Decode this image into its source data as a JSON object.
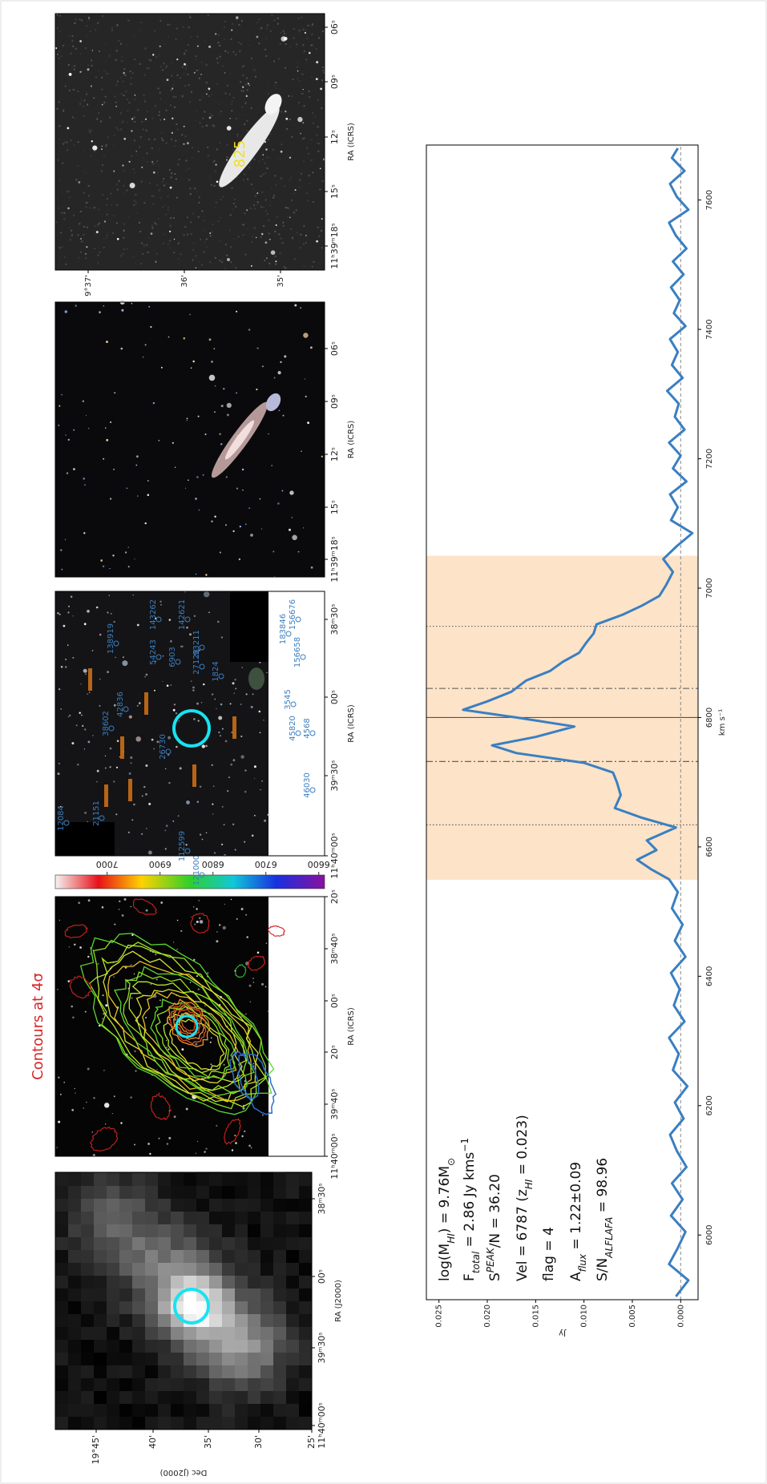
{
  "panels": [
    {
      "xlabel": "RA (J2000)",
      "ylabel": "Dec (J2000)",
      "xticks": [
        "11ʰ40ᵐ00ˢ",
        "39ᵐ30ˢ",
        "00ˢ",
        "38ᵐ30ˢ"
      ],
      "yticks": [
        "19°45'",
        "40'",
        "35'",
        "30'",
        "25'"
      ]
    },
    {
      "title": "Contours at 4σ",
      "xlabel": "RA (ICRS)",
      "xticks": [
        "11ʰ40ᵐ00ˢ",
        "39ᵐ40ˢ",
        "20ˢ",
        "00ˢ",
        "38ᵐ40ˢ",
        "20ˢ"
      ]
    },
    {
      "xlabel": "RA (ICRS)",
      "xticks": [
        "11ʰ40ᵐ00ˢ",
        "39ᵐ30ˢ",
        "00ˢ",
        "38ᵐ30ˢ"
      ],
      "colorbar_ticks": [
        7000,
        6900,
        6800,
        6700,
        6600
      ],
      "clim": [
        6589,
        7098
      ],
      "labels": [
        "138919",
        "143262",
        "142621",
        "54243",
        "93211",
        "183846",
        "156658",
        "156676",
        "38602",
        "42836",
        "26730",
        "6903",
        "27128",
        "1824",
        "45820",
        "3545",
        "4568",
        "46030",
        "12084",
        "21151",
        "112599",
        "121000"
      ]
    },
    {
      "xlabel": "RA (ICRS)",
      "xticks": [
        "11ʰ39ᵐ18ˢ",
        "15ˢ",
        "12ˢ",
        "09ˢ",
        "06ˢ"
      ]
    },
    {
      "xlabel": "RA (ICRS)",
      "xticks": [
        "11ʰ39ᵐ18ˢ",
        "15ˢ",
        "12ˢ",
        "09ˢ",
        "06ˢ"
      ],
      "yticks": [
        "9°37'",
        "36'",
        "35'"
      ],
      "annotation": "825"
    }
  ],
  "chart_data": {
    "type": "line",
    "xlabel": "km s⁻¹",
    "ylabel": "Jy",
    "xlim": [
      5900,
      7685
    ],
    "ylim": [
      -0.0018,
      0.0263
    ],
    "xticks": [
      6000,
      6200,
      6400,
      6600,
      6800,
      7000,
      7200,
      7400,
      7600
    ],
    "yticks": [
      {
        "value": 0,
        "label": "0.000"
      },
      {
        "value": 0.005,
        "label": "0.005"
      },
      {
        "value": 0.01,
        "label": "0.010"
      },
      {
        "value": 0.015,
        "label": "0.015"
      },
      {
        "value": 0.02,
        "label": "0.020"
      },
      {
        "value": 0.025,
        "label": "0.025"
      }
    ],
    "shade": [
      6549,
      7050
    ],
    "shade_color": "#fde3c8",
    "vlines_solid": [
      6800
    ],
    "vlines_dashdot": [
      6732,
      6845
    ],
    "vlines_dotted": [
      6634,
      6941
    ],
    "hline": 0,
    "x": [
      5905,
      5930,
      5955,
      5980,
      6005,
      6030,
      6055,
      6080,
      6105,
      6130,
      6155,
      6180,
      6205,
      6230,
      6255,
      6280,
      6305,
      6330,
      6355,
      6380,
      6405,
      6430,
      6455,
      6480,
      6505,
      6530,
      6550,
      6565,
      6580,
      6595,
      6610,
      6630,
      6645,
      6660,
      6680,
      6700,
      6715,
      6730,
      6745,
      6757,
      6770,
      6786,
      6800,
      6812,
      6825,
      6840,
      6857,
      6872,
      6886,
      6900,
      6915,
      6930,
      6944,
      6959,
      6973,
      6988,
      7005,
      7025,
      7045,
      7065,
      7085,
      7105,
      7125,
      7145,
      7165,
      7185,
      7205,
      7225,
      7245,
      7265,
      7285,
      7305,
      7325,
      7345,
      7365,
      7385,
      7405,
      7425,
      7445,
      7465,
      7485,
      7505,
      7525,
      7545,
      7565,
      7585,
      7605,
      7625,
      7645,
      7665,
      7680
    ],
    "series": [
      {
        "color": "#3a7fc1",
        "values": [
          0.0005,
          -0.0008,
          0.0012,
          0.0003,
          -0.0005,
          0.001,
          -0.0002,
          0.0009,
          -0.0006,
          0.0004,
          0.0011,
          -0.0003,
          0.0006,
          -0.0007,
          0.0008,
          0.0002,
          0.0012,
          -0.0004,
          0.0007,
          0.0001,
          0.001,
          -0.0005,
          0.0006,
          -0.0002,
          0.0009,
          0.0003,
          0.0012,
          0.003,
          0.0045,
          0.0025,
          0.0035,
          0.0005,
          0.004,
          0.0068,
          0.0062,
          0.0066,
          0.007,
          0.01,
          0.017,
          0.0195,
          0.015,
          0.011,
          0.017,
          0.0225,
          0.02,
          0.0175,
          0.016,
          0.0135,
          0.0122,
          0.0105,
          0.0098,
          0.009,
          0.0087,
          0.006,
          0.004,
          0.0022,
          0.0015,
          0.0008,
          0.0018,
          0.0004,
          -0.0012,
          0.001,
          0.0003,
          0.0011,
          -0.0006,
          0.0008,
          0.0,
          0.0012,
          -0.0004,
          0.0006,
          0.0002,
          0.0014,
          -0.0002,
          0.0009,
          0.0003,
          0.0011,
          -0.0005,
          0.0007,
          0.0001,
          0.001,
          -0.0003,
          0.0008,
          -0.0006,
          0.0005,
          0.0012,
          -0.0008,
          0.0004,
          0.0011,
          -0.0004,
          0.0009,
          0.0003
        ]
      }
    ],
    "annotations": [
      [
        {
          "text": "log(M"
        },
        {
          "text": "HI",
          "shift": "sub"
        },
        {
          "text": ") = 9.76M"
        },
        {
          "text": "⊙",
          "shift": "sub"
        }
      ],
      [
        {
          "text": "F"
        },
        {
          "text": "total",
          "shift": "sub"
        },
        {
          "text": " = 2.86 Jy kms"
        },
        {
          "text": "−1",
          "shift": "super"
        }
      ],
      [
        {
          "text": "S"
        },
        {
          "text": "PEAK",
          "shift": "super"
        },
        {
          "text": "/N = 36.20"
        }
      ],
      [
        {
          "text": "Vel = 6787 (z"
        },
        {
          "text": "HI",
          "shift": "sub"
        },
        {
          "text": " = 0.023)"
        }
      ],
      [
        {
          "text": "flag = 4"
        }
      ],
      [
        {
          "text": "A"
        },
        {
          "text": "flux",
          "shift": "sub"
        },
        {
          "text": " = 1.22±0.09"
        }
      ],
      [
        {
          "text": "S/N"
        },
        {
          "text": "ALFLAFA",
          "shift": "sub"
        },
        {
          "text": " = 98.96"
        }
      ]
    ]
  }
}
